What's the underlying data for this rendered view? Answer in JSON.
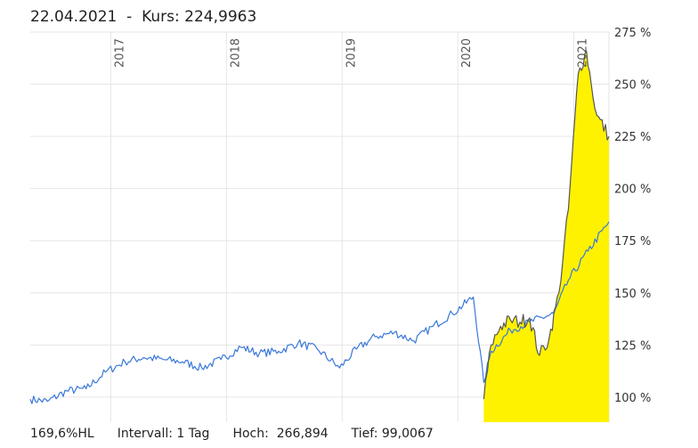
{
  "header": {
    "date": "22.04.2021",
    "separator": "  -  ",
    "kurs_label": "Kurs:",
    "kurs_value": "224,9963"
  },
  "footer": {
    "hl": "169,6%HL",
    "interval": "Intervall: 1 Tag",
    "hoch": "Hoch:  266,894",
    "tief": "Tief: 99,0067"
  },
  "colors": {
    "benchmark_line": "#3a78d8",
    "security_line": "#555555",
    "security_fill": "#fff200",
    "grid": "#e6e6e6"
  },
  "chart_data": {
    "type": "line",
    "title": "",
    "xlabel": "",
    "ylabel": "",
    "x_ticks": [
      "2017",
      "2018",
      "2019",
      "2020",
      "2021"
    ],
    "y_ticks": [
      "100 %",
      "125 %",
      "150 %",
      "175 %",
      "200 %",
      "225 %",
      "250 %",
      "275 %"
    ],
    "y_tick_values": [
      100,
      125,
      150,
      175,
      200,
      225,
      250,
      275
    ],
    "xlim": [
      "2016-04-22",
      "2021-04-22"
    ],
    "ylim": [
      88,
      275
    ],
    "grid": true,
    "series": [
      {
        "color": "#3a78d8",
        "x": [
          "2016-04-22",
          "2016-06-15",
          "2016-08-15",
          "2016-10-15",
          "2016-12-15",
          "2017-02-15",
          "2017-04-15",
          "2017-06-15",
          "2017-08-15",
          "2017-10-15",
          "2017-12-15",
          "2018-02-15",
          "2018-04-15",
          "2018-06-15",
          "2018-08-15",
          "2018-10-15",
          "2018-12-24",
          "2019-02-15",
          "2019-04-15",
          "2019-06-15",
          "2019-08-15",
          "2019-10-15",
          "2019-12-15",
          "2020-02-19",
          "2020-03-23",
          "2020-04-15",
          "2020-06-15",
          "2020-08-15",
          "2020-10-30",
          "2020-12-15",
          "2021-02-15",
          "2021-04-22"
        ],
        "values": [
          99,
          98,
          103,
          104,
          112,
          117,
          119,
          118,
          117,
          114,
          118,
          124,
          121,
          122,
          126,
          123,
          114,
          123,
          129,
          131,
          127,
          134,
          140,
          148,
          107,
          122,
          132,
          136,
          140,
          156,
          170,
          184
        ]
      },
      {
        "color": "#555555",
        "fill": "#fff200",
        "x": [
          "2020-03-23",
          "2020-04-15",
          "2020-05-15",
          "2020-06-15",
          "2020-07-15",
          "2020-08-15",
          "2020-09-15",
          "2020-10-15",
          "2020-11-15",
          "2020-12-15",
          "2021-01-15",
          "2021-02-10",
          "2021-02-25",
          "2021-03-15",
          "2021-04-22"
        ],
        "values": [
          99,
          125,
          134,
          137,
          136,
          138,
          120,
          128,
          150,
          190,
          255,
          266,
          250,
          235,
          225
        ]
      }
    ]
  }
}
